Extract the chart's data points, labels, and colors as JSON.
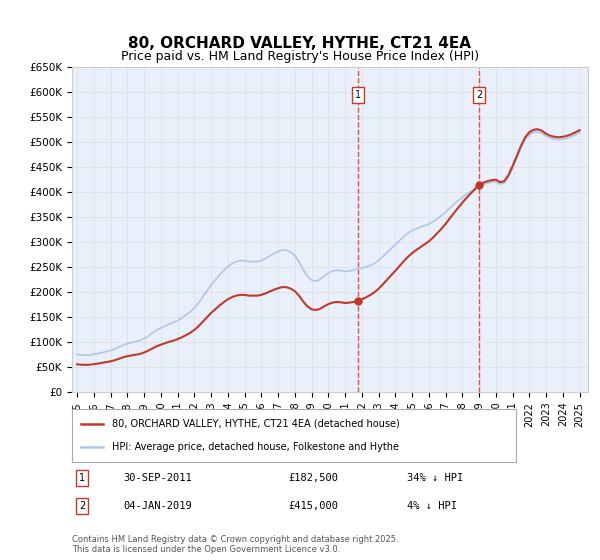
{
  "title": "80, ORCHARD VALLEY, HYTHE, CT21 4EA",
  "subtitle": "Price paid vs. HM Land Registry's House Price Index (HPI)",
  "title_fontsize": 11,
  "subtitle_fontsize": 9,
  "ylabel": "",
  "xlabel": "",
  "ylim": [
    0,
    650000
  ],
  "yticks": [
    0,
    50000,
    100000,
    150000,
    200000,
    250000,
    300000,
    350000,
    400000,
    450000,
    500000,
    550000,
    600000,
    650000
  ],
  "ytick_labels": [
    "£0",
    "£50K",
    "£100K",
    "£150K",
    "£200K",
    "£250K",
    "£300K",
    "£350K",
    "£400K",
    "£450K",
    "£500K",
    "£550K",
    "£600K",
    "£650K"
  ],
  "xlim_start": 1995.0,
  "xlim_end": 2025.5,
  "xtick_years": [
    1995,
    1996,
    1997,
    1998,
    1999,
    2000,
    2001,
    2002,
    2003,
    2004,
    2005,
    2006,
    2007,
    2008,
    2009,
    2010,
    2011,
    2012,
    2013,
    2014,
    2015,
    2016,
    2017,
    2018,
    2019,
    2020,
    2021,
    2022,
    2023,
    2024,
    2025
  ],
  "hpi_color": "#aec6e8",
  "price_color": "#c0392b",
  "marker_color": "#c0392b",
  "vline_color": "#e74c3c",
  "grid_color": "#dddddd",
  "background_color": "#eaf0fb",
  "legend_label_price": "80, ORCHARD VALLEY, HYTHE, CT21 4EA (detached house)",
  "legend_label_hpi": "HPI: Average price, detached house, Folkestone and Hythe",
  "annotation1_date": "30-SEP-2011",
  "annotation1_price": "£182,500",
  "annotation1_pct": "34% ↓ HPI",
  "annotation2_date": "04-JAN-2019",
  "annotation2_price": "£415,000",
  "annotation2_pct": "4% ↓ HPI",
  "sale1_x": 2011.75,
  "sale1_y": 182500,
  "sale2_x": 2019.01,
  "sale2_y": 415000,
  "footer": "Contains HM Land Registry data © Crown copyright and database right 2025.\nThis data is licensed under the Open Government Licence v3.0.",
  "hpi_data": {
    "years": [
      1995.0,
      1995.25,
      1995.5,
      1995.75,
      1996.0,
      1996.25,
      1996.5,
      1996.75,
      1997.0,
      1997.25,
      1997.5,
      1997.75,
      1998.0,
      1998.25,
      1998.5,
      1998.75,
      1999.0,
      1999.25,
      1999.5,
      1999.75,
      2000.0,
      2000.25,
      2000.5,
      2000.75,
      2001.0,
      2001.25,
      2001.5,
      2001.75,
      2002.0,
      2002.25,
      2002.5,
      2002.75,
      2003.0,
      2003.25,
      2003.5,
      2003.75,
      2004.0,
      2004.25,
      2004.5,
      2004.75,
      2005.0,
      2005.25,
      2005.5,
      2005.75,
      2006.0,
      2006.25,
      2006.5,
      2006.75,
      2007.0,
      2007.25,
      2007.5,
      2007.75,
      2008.0,
      2008.25,
      2008.5,
      2008.75,
      2009.0,
      2009.25,
      2009.5,
      2009.75,
      2010.0,
      2010.25,
      2010.5,
      2010.75,
      2011.0,
      2011.25,
      2011.5,
      2011.75,
      2012.0,
      2012.25,
      2012.5,
      2012.75,
      2013.0,
      2013.25,
      2013.5,
      2013.75,
      2014.0,
      2014.25,
      2014.5,
      2014.75,
      2015.0,
      2015.25,
      2015.5,
      2015.75,
      2016.0,
      2016.25,
      2016.5,
      2016.75,
      2017.0,
      2017.25,
      2017.5,
      2017.75,
      2018.0,
      2018.25,
      2018.5,
      2018.75,
      2019.0,
      2019.25,
      2019.5,
      2019.75,
      2020.0,
      2020.25,
      2020.5,
      2020.75,
      2021.0,
      2021.25,
      2021.5,
      2021.75,
      2022.0,
      2022.25,
      2022.5,
      2022.75,
      2023.0,
      2023.25,
      2023.5,
      2023.75,
      2024.0,
      2024.25,
      2024.5,
      2024.75,
      2025.0
    ],
    "values": [
      75000,
      74000,
      73500,
      74000,
      75500,
      77000,
      79000,
      81000,
      83000,
      86000,
      90000,
      94000,
      97000,
      99000,
      101000,
      103000,
      107000,
      112000,
      118000,
      124000,
      128000,
      132000,
      136000,
      139000,
      143000,
      148000,
      154000,
      160000,
      168000,
      178000,
      190000,
      202000,
      214000,
      224000,
      234000,
      243000,
      251000,
      257000,
      261000,
      263000,
      263000,
      261000,
      261000,
      261000,
      263000,
      267000,
      272000,
      277000,
      281000,
      284000,
      284000,
      280000,
      273000,
      261000,
      245000,
      232000,
      224000,
      222000,
      225000,
      232000,
      238000,
      242000,
      244000,
      243000,
      241000,
      242000,
      244000,
      247000,
      248000,
      250000,
      253000,
      257000,
      263000,
      271000,
      279000,
      287000,
      295000,
      303000,
      311000,
      318000,
      323000,
      327000,
      330000,
      333000,
      336000,
      341000,
      347000,
      353000,
      360000,
      368000,
      376000,
      383000,
      390000,
      396000,
      401000,
      406000,
      411000,
      415000,
      418000,
      420000,
      421000,
      416000,
      418000,
      430000,
      448000,
      468000,
      488000,
      505000,
      515000,
      520000,
      521000,
      518000,
      512000,
      508000,
      506000,
      505000,
      506000,
      508000,
      511000,
      515000,
      519000
    ]
  }
}
